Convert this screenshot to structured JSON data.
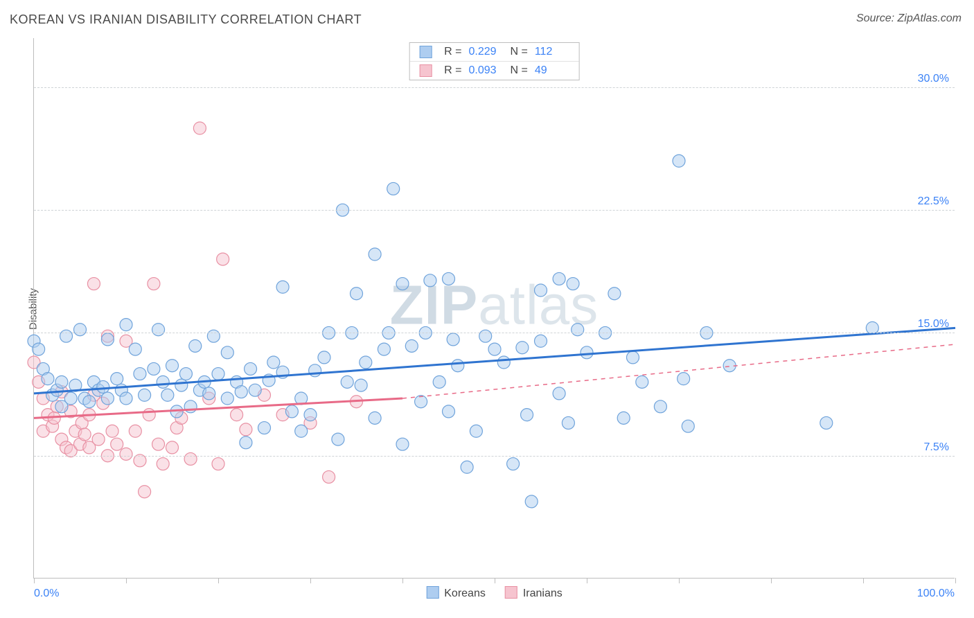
{
  "title": "KOREAN VS IRANIAN DISABILITY CORRELATION CHART",
  "source_prefix": "Source: ",
  "source_name": "ZipAtlas.com",
  "y_axis_label": "Disability",
  "watermark": {
    "bold": "ZIP",
    "rest": "atlas"
  },
  "colors": {
    "series_a_fill": "#aecdf0",
    "series_a_stroke": "#6fa3db",
    "series_a_line": "#2f74d0",
    "series_b_fill": "#f6c4cf",
    "series_b_stroke": "#e890a3",
    "series_b_line": "#e86a87",
    "grid": "#cfd3d6",
    "axis": "#bdbdbd",
    "tick_label": "#3b82f6",
    "text": "#4a4a4a",
    "bg": "#ffffff"
  },
  "legend_top": [
    {
      "series": "a",
      "r_label": "R =",
      "r_value": "0.229",
      "n_label": "N =",
      "n_value": "112"
    },
    {
      "series": "b",
      "r_label": "R =",
      "r_value": "0.093",
      "n_label": "N =",
      "n_value": "49"
    }
  ],
  "legend_bottom": [
    {
      "series": "a",
      "label": "Koreans"
    },
    {
      "series": "b",
      "label": "Iranians"
    }
  ],
  "chart": {
    "type": "scatter",
    "x_domain": [
      0,
      100
    ],
    "y_domain": [
      0,
      33
    ],
    "y_ticks": [
      {
        "value": 7.5,
        "label": "7.5%"
      },
      {
        "value": 15.0,
        "label": "15.0%"
      },
      {
        "value": 22.5,
        "label": "22.5%"
      },
      {
        "value": 30.0,
        "label": "30.0%"
      }
    ],
    "x_tick_values": [
      0,
      10,
      20,
      30,
      40,
      50,
      60,
      70,
      80,
      90,
      100
    ],
    "x_edge_labels": {
      "min": "0.0%",
      "max": "100.0%"
    },
    "marker_radius": 9,
    "marker_fill_opacity": 0.5,
    "marker_stroke_width": 1.2,
    "line_width": 3,
    "trend_lines": {
      "a": {
        "solid": {
          "x1": 0,
          "y1": 11.3,
          "x2": 100,
          "y2": 15.3
        }
      },
      "b": {
        "solid": {
          "x1": 0,
          "y1": 9.8,
          "x2": 40,
          "y2": 11.0
        },
        "dashed": {
          "x1": 40,
          "y1": 11.0,
          "x2": 100,
          "y2": 14.3
        }
      }
    },
    "series_a_points": [
      [
        0,
        14.5
      ],
      [
        0.5,
        14.0
      ],
      [
        1,
        12.8
      ],
      [
        1.5,
        12.2
      ],
      [
        2,
        11.2
      ],
      [
        2.5,
        11.5
      ],
      [
        3,
        10.5
      ],
      [
        3,
        12.0
      ],
      [
        3.5,
        14.8
      ],
      [
        4,
        11.0
      ],
      [
        4.5,
        11.8
      ],
      [
        5,
        15.2
      ],
      [
        5.5,
        11.0
      ],
      [
        6,
        10.8
      ],
      [
        6.5,
        12.0
      ],
      [
        7,
        11.5
      ],
      [
        7.5,
        11.7
      ],
      [
        8,
        14.6
      ],
      [
        8,
        11.0
      ],
      [
        9,
        12.2
      ],
      [
        9.5,
        11.5
      ],
      [
        10,
        15.5
      ],
      [
        10,
        11.0
      ],
      [
        11,
        14.0
      ],
      [
        11.5,
        12.5
      ],
      [
        12,
        11.2
      ],
      [
        13,
        12.8
      ],
      [
        13.5,
        15.2
      ],
      [
        14,
        12.0
      ],
      [
        14.5,
        11.2
      ],
      [
        15,
        13.0
      ],
      [
        15.5,
        10.2
      ],
      [
        16,
        11.8
      ],
      [
        16.5,
        12.5
      ],
      [
        17,
        10.5
      ],
      [
        17.5,
        14.2
      ],
      [
        18,
        11.5
      ],
      [
        18.5,
        12.0
      ],
      [
        19,
        11.3
      ],
      [
        19.5,
        14.8
      ],
      [
        20,
        12.5
      ],
      [
        21,
        13.8
      ],
      [
        21,
        11.0
      ],
      [
        22,
        12.0
      ],
      [
        22.5,
        11.4
      ],
      [
        23,
        8.3
      ],
      [
        23.5,
        12.8
      ],
      [
        24,
        11.5
      ],
      [
        25,
        9.2
      ],
      [
        25.5,
        12.1
      ],
      [
        26,
        13.2
      ],
      [
        27,
        17.8
      ],
      [
        27,
        12.6
      ],
      [
        28,
        10.2
      ],
      [
        29,
        11.0
      ],
      [
        29,
        9.0
      ],
      [
        30,
        10.0
      ],
      [
        30.5,
        12.7
      ],
      [
        31.5,
        13.5
      ],
      [
        32,
        15.0
      ],
      [
        33,
        8.5
      ],
      [
        33.5,
        22.5
      ],
      [
        34,
        12.0
      ],
      [
        34.5,
        15.0
      ],
      [
        35,
        17.4
      ],
      [
        35.5,
        11.8
      ],
      [
        36,
        13.2
      ],
      [
        37,
        9.8
      ],
      [
        37,
        19.8
      ],
      [
        38,
        14.0
      ],
      [
        38.5,
        15.0
      ],
      [
        39,
        23.8
      ],
      [
        40,
        8.2
      ],
      [
        40,
        18.0
      ],
      [
        41,
        14.2
      ],
      [
        42,
        10.8
      ],
      [
        42.5,
        15.0
      ],
      [
        43,
        18.2
      ],
      [
        44,
        12.0
      ],
      [
        45,
        10.2
      ],
      [
        45,
        18.3
      ],
      [
        45.5,
        14.6
      ],
      [
        46,
        13.0
      ],
      [
        47,
        6.8
      ],
      [
        48,
        9.0
      ],
      [
        49,
        14.8
      ],
      [
        50,
        14.0
      ],
      [
        51,
        13.2
      ],
      [
        52,
        7.0
      ],
      [
        53,
        14.1
      ],
      [
        53.5,
        10.0
      ],
      [
        54,
        4.7
      ],
      [
        55,
        14.5
      ],
      [
        55,
        17.6
      ],
      [
        57,
        11.3
      ],
      [
        57,
        18.3
      ],
      [
        58,
        9.5
      ],
      [
        58.5,
        18.0
      ],
      [
        59,
        15.2
      ],
      [
        60,
        13.8
      ],
      [
        62,
        15.0
      ],
      [
        63,
        17.4
      ],
      [
        64,
        9.8
      ],
      [
        65,
        13.5
      ],
      [
        66,
        12.0
      ],
      [
        68,
        10.5
      ],
      [
        70,
        25.5
      ],
      [
        70.5,
        12.2
      ],
      [
        71,
        9.3
      ],
      [
        73,
        15.0
      ],
      [
        75.5,
        13.0
      ],
      [
        86,
        9.5
      ],
      [
        91,
        15.3
      ]
    ],
    "series_b_points": [
      [
        0,
        13.2
      ],
      [
        0.5,
        12.0
      ],
      [
        1,
        11.0
      ],
      [
        1,
        9.0
      ],
      [
        1.5,
        10.0
      ],
      [
        2,
        9.3
      ],
      [
        2.2,
        9.8
      ],
      [
        2.5,
        10.5
      ],
      [
        3,
        11.4
      ],
      [
        3,
        8.5
      ],
      [
        3.5,
        8.0
      ],
      [
        4,
        10.2
      ],
      [
        4,
        7.8
      ],
      [
        4.5,
        9.0
      ],
      [
        5,
        8.2
      ],
      [
        5.2,
        9.5
      ],
      [
        5.5,
        8.8
      ],
      [
        6,
        10.0
      ],
      [
        6,
        8.0
      ],
      [
        6.5,
        18.0
      ],
      [
        6.5,
        11.2
      ],
      [
        7,
        8.5
      ],
      [
        7.5,
        10.7
      ],
      [
        8,
        14.8
      ],
      [
        8,
        7.5
      ],
      [
        8.5,
        9.0
      ],
      [
        9,
        8.2
      ],
      [
        10,
        14.5
      ],
      [
        10,
        7.6
      ],
      [
        11,
        9.0
      ],
      [
        11.5,
        7.2
      ],
      [
        12,
        5.3
      ],
      [
        12.5,
        10.0
      ],
      [
        13,
        18.0
      ],
      [
        13.5,
        8.2
      ],
      [
        14,
        7.0
      ],
      [
        15,
        8.0
      ],
      [
        15.5,
        9.2
      ],
      [
        16,
        9.8
      ],
      [
        17,
        7.3
      ],
      [
        18,
        27.5
      ],
      [
        19,
        11.0
      ],
      [
        20,
        7.0
      ],
      [
        20.5,
        19.5
      ],
      [
        22,
        10.0
      ],
      [
        23,
        9.1
      ],
      [
        25,
        11.2
      ],
      [
        27,
        10.0
      ],
      [
        30,
        9.5
      ],
      [
        32,
        6.2
      ],
      [
        35,
        10.8
      ]
    ]
  },
  "title_fontsize": 18,
  "axis_label_fontsize": 15,
  "tick_label_fontsize": 16
}
